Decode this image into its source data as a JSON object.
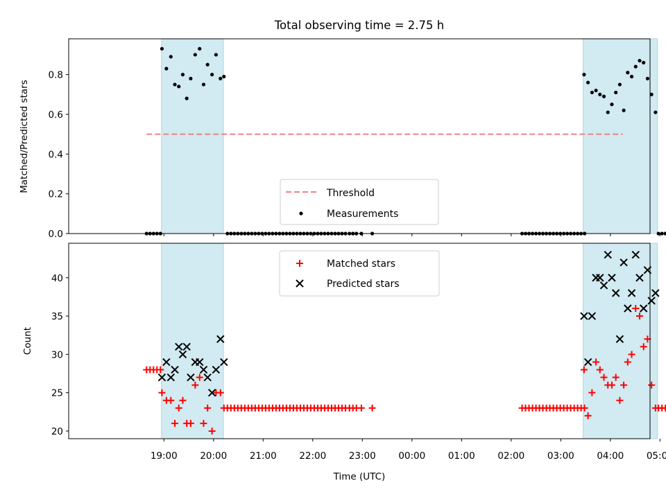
{
  "chart_data": {
    "title": "Total observing time = 2.75 h",
    "xlabel": "Time (UTC)",
    "x_units": "hours since 18:00 UTC (19:00 = 1.0, 05:00 next day = 11.0)",
    "x_ticks": [
      {
        "x": 1,
        "label": "19:00"
      },
      {
        "x": 2,
        "label": "20:00"
      },
      {
        "x": 3,
        "label": "21:00"
      },
      {
        "x": 4,
        "label": "22:00"
      },
      {
        "x": 5,
        "label": "23:00"
      },
      {
        "x": 6,
        "label": "00:00"
      },
      {
        "x": 7,
        "label": "01:00"
      },
      {
        "x": 8,
        "label": "02:00"
      },
      {
        "x": 9,
        "label": "03:00"
      },
      {
        "x": 10,
        "label": "04:00"
      },
      {
        "x": 11,
        "label": "05:00"
      }
    ],
    "xlim": [
      -0.92,
      10.8
    ],
    "colors": {
      "threshold": "#f08080",
      "measurements": "#000000",
      "matched": "#ff0000",
      "predicted": "#000000",
      "shade": "#add8e6"
    },
    "observing_windows": [
      [
        0.95,
        2.2
      ],
      [
        9.45,
        10.95
      ]
    ],
    "panels": [
      {
        "type": "scatter",
        "ylabel": "Matched/Predicted stars",
        "ylim": [
          0,
          0.98
        ],
        "yticks": [
          0.0,
          0.2,
          0.4,
          0.6,
          0.8
        ],
        "ytick_labels": [
          "0.0",
          "0.2",
          "0.4",
          "0.6",
          "0.8"
        ],
        "threshold": {
          "y": 0.5,
          "x_range": [
            0.65,
            10.25
          ],
          "name": "Threshold"
        },
        "legend": {
          "position": "lower center",
          "entries": [
            "Threshold",
            "Measurements"
          ]
        },
        "series": [
          {
            "name": "Measurements",
            "x": [
              0.65,
              0.72,
              0.79,
              0.86,
              0.93,
              0.96,
              1.05,
              1.14,
              1.22,
              1.3,
              1.38,
              1.46,
              1.54,
              1.63,
              1.72,
              1.8,
              1.88,
              1.97,
              2.05,
              2.14,
              2.21,
              2.28,
              2.35,
              2.42,
              2.49,
              2.56,
              2.63,
              2.7,
              2.77,
              2.84,
              2.91,
              2.98,
              3.05,
              3.12,
              3.19,
              3.26,
              3.33,
              3.4,
              3.47,
              3.54,
              3.61,
              3.68,
              3.75,
              3.82,
              3.89,
              3.96,
              4.03,
              4.1,
              4.17,
              4.24,
              4.31,
              4.38,
              4.45,
              4.52,
              4.59,
              4.66,
              4.74,
              4.81,
              4.88,
              4.98,
              5.2,
              8.22,
              8.29,
              8.36,
              8.43,
              8.5,
              8.57,
              8.64,
              8.71,
              8.78,
              8.85,
              8.92,
              8.99,
              9.06,
              9.13,
              9.2,
              9.27,
              9.34,
              9.41,
              9.48,
              9.47,
              9.55,
              9.63,
              9.71,
              9.79,
              9.87,
              9.95,
              10.03,
              10.11,
              10.19,
              10.27,
              10.35,
              10.43,
              10.51,
              10.59,
              10.67,
              10.75,
              10.83,
              10.91,
              10.97,
              11.04,
              11.11,
              11.18,
              11.25
            ],
            "y": [
              0,
              0,
              0,
              0,
              0,
              0.93,
              0.83,
              0.89,
              0.75,
              0.74,
              0.8,
              0.68,
              0.78,
              0.9,
              0.93,
              0.75,
              0.85,
              0.8,
              0.9,
              0.78,
              0.79,
              0,
              0,
              0,
              0,
              0,
              0,
              0,
              0,
              0,
              0,
              0,
              0,
              0,
              0,
              0,
              0,
              0,
              0,
              0,
              0,
              0,
              0,
              0,
              0,
              0,
              0,
              0,
              0,
              0,
              0,
              0,
              0,
              0,
              0,
              0,
              0,
              0,
              0,
              0,
              0,
              0,
              0,
              0,
              0,
              0,
              0,
              0,
              0,
              0,
              0,
              0,
              0,
              0,
              0,
              0,
              0,
              0,
              0,
              0,
              0.8,
              0.76,
              0.71,
              0.72,
              0.7,
              0.69,
              0.61,
              0.65,
              0.71,
              0.75,
              0.62,
              0.81,
              0.79,
              0.84,
              0.87,
              0.86,
              0.78,
              0.7,
              0.61,
              0,
              0,
              0,
              0,
              0
            ]
          }
        ]
      },
      {
        "type": "scatter",
        "ylabel": "Count",
        "ylim": [
          19,
          44.5
        ],
        "yticks": [
          20,
          25,
          30,
          35,
          40
        ],
        "ytick_labels": [
          "20",
          "25",
          "30",
          "35",
          "40"
        ],
        "legend": {
          "position": "upper center",
          "entries": [
            "Matched stars",
            "Predicted stars"
          ]
        },
        "series": [
          {
            "name": "Matched stars",
            "marker": "plus",
            "x": [
              0.65,
              0.72,
              0.79,
              0.86,
              0.93,
              0.96,
              1.05,
              1.14,
              1.22,
              1.3,
              1.38,
              1.46,
              1.54,
              1.63,
              1.72,
              1.8,
              1.88,
              1.97,
              2.05,
              2.14,
              2.21,
              2.28,
              2.35,
              2.42,
              2.49,
              2.56,
              2.63,
              2.7,
              2.77,
              2.84,
              2.91,
              2.98,
              3.05,
              3.12,
              3.19,
              3.26,
              3.33,
              3.4,
              3.47,
              3.54,
              3.61,
              3.68,
              3.75,
              3.82,
              3.89,
              3.96,
              4.03,
              4.1,
              4.17,
              4.24,
              4.31,
              4.38,
              4.45,
              4.52,
              4.59,
              4.66,
              4.74,
              4.81,
              4.88,
              4.98,
              5.2,
              8.22,
              8.29,
              8.36,
              8.43,
              8.5,
              8.57,
              8.64,
              8.71,
              8.78,
              8.85,
              8.92,
              8.99,
              9.06,
              9.13,
              9.2,
              9.27,
              9.34,
              9.41,
              9.48,
              9.47,
              9.55,
              9.63,
              9.71,
              9.79,
              9.87,
              9.95,
              10.03,
              10.11,
              10.19,
              10.27,
              10.35,
              10.43,
              10.51,
              10.59,
              10.67,
              10.75,
              10.83,
              10.91,
              10.97,
              11.04,
              11.11,
              11.18,
              11.25
            ],
            "y": [
              28,
              28,
              28,
              28,
              28,
              25,
              24,
              24,
              21,
              23,
              24,
              21,
              21,
              26,
              27,
              21,
              23,
              20,
              25,
              25,
              23,
              23,
              23,
              23,
              23,
              23,
              23,
              23,
              23,
              23,
              23,
              23,
              23,
              23,
              23,
              23,
              23,
              23,
              23,
              23,
              23,
              23,
              23,
              23,
              23,
              23,
              23,
              23,
              23,
              23,
              23,
              23,
              23,
              23,
              23,
              23,
              23,
              23,
              23,
              23,
              23,
              23,
              23,
              23,
              23,
              23,
              23,
              23,
              23,
              23,
              23,
              23,
              23,
              23,
              23,
              23,
              23,
              23,
              23,
              23,
              28,
              22,
              25,
              29,
              28,
              27,
              26,
              26,
              27,
              24,
              26,
              29,
              30,
              36,
              35,
              31,
              32,
              26,
              23,
              23,
              23,
              23,
              23,
              23
            ]
          },
          {
            "name": "Predicted stars",
            "marker": "x",
            "x": [
              0.96,
              1.05,
              1.14,
              1.22,
              1.3,
              1.38,
              1.46,
              1.54,
              1.63,
              1.72,
              1.8,
              1.88,
              1.97,
              2.05,
              2.14,
              2.21,
              9.47,
              9.55,
              9.63,
              9.71,
              9.79,
              9.87,
              9.95,
              10.03,
              10.11,
              10.19,
              10.27,
              10.35,
              10.43,
              10.51,
              10.59,
              10.67,
              10.75,
              10.83,
              10.91
            ],
            "y": [
              27,
              29,
              27,
              28,
              31,
              30,
              31,
              27,
              29,
              29,
              28,
              27,
              25,
              28,
              32,
              29,
              35,
              29,
              35,
              40,
              40,
              39,
              43,
              40,
              38,
              32,
              42,
              36,
              38,
              43,
              40,
              36,
              41,
              37,
              38
            ]
          }
        ]
      }
    ]
  }
}
